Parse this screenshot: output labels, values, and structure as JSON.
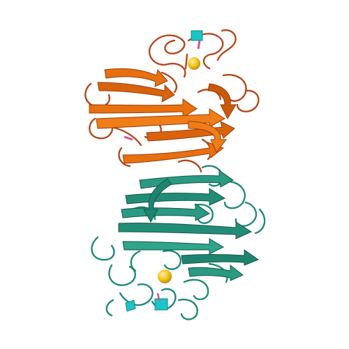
{
  "scene": {
    "background": "#ffffff",
    "chains": [
      {
        "name": "chain-a",
        "strand_color": "#e8700f",
        "strand_dark": "#9a3f08",
        "coil_color": "#b4481c"
      },
      {
        "name": "chain-b",
        "strand_color": "#2a9a82",
        "strand_dark": "#12584a",
        "coil_color": "#1f8a7a"
      }
    ],
    "ligands": {
      "sphere_color": "#f2c419",
      "cube_color": "#1cc3c8",
      "accent_color": "#d44f9a"
    }
  }
}
